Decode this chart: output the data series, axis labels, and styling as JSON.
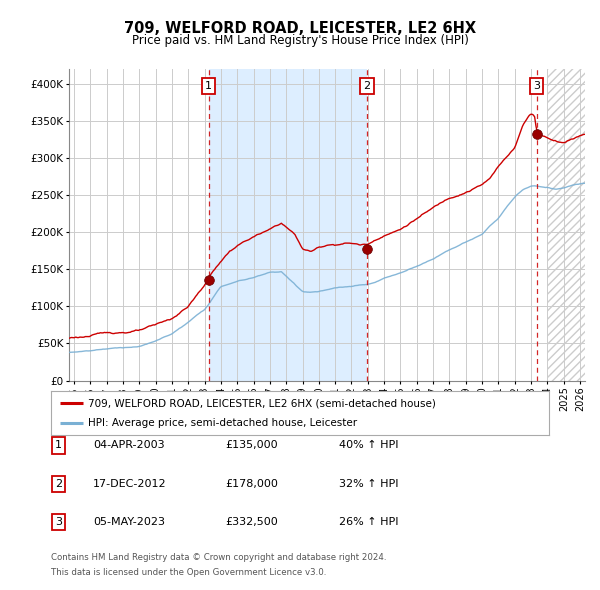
{
  "title": "709, WELFORD ROAD, LEICESTER, LE2 6HX",
  "subtitle": "Price paid vs. HM Land Registry's House Price Index (HPI)",
  "ylim": [
    0,
    420000
  ],
  "xlim_start": 1994.7,
  "xlim_end": 2026.3,
  "ytick_labels": [
    "£0",
    "£50K",
    "£100K",
    "£150K",
    "£200K",
    "£250K",
    "£300K",
    "£350K",
    "£400K"
  ],
  "ytick_values": [
    0,
    50000,
    100000,
    150000,
    200000,
    250000,
    300000,
    350000,
    400000
  ],
  "xtick_years": [
    1995,
    1996,
    1997,
    1998,
    1999,
    2000,
    2001,
    2002,
    2003,
    2004,
    2005,
    2006,
    2007,
    2008,
    2009,
    2010,
    2011,
    2012,
    2013,
    2014,
    2015,
    2016,
    2017,
    2018,
    2019,
    2020,
    2021,
    2022,
    2023,
    2024,
    2025,
    2026
  ],
  "sale_dates": [
    2003.25,
    2012.96,
    2023.35
  ],
  "sale_prices": [
    135000,
    178000,
    332500
  ],
  "sale_labels": [
    "1",
    "2",
    "3"
  ],
  "legend_red": "709, WELFORD ROAD, LEICESTER, LE2 6HX (semi-detached house)",
  "legend_blue": "HPI: Average price, semi-detached house, Leicester",
  "table_data": [
    [
      "1",
      "04-APR-2003",
      "£135,000",
      "40% ↑ HPI"
    ],
    [
      "2",
      "17-DEC-2012",
      "£178,000",
      "32% ↑ HPI"
    ],
    [
      "3",
      "05-MAY-2023",
      "£332,500",
      "26% ↑ HPI"
    ]
  ],
  "footnote1": "Contains HM Land Registry data © Crown copyright and database right 2024.",
  "footnote2": "This data is licensed under the Open Government Licence v3.0.",
  "chart_bg": "#ffffff",
  "panel_bg": "#ddeeff",
  "red_line": "#cc0000",
  "blue_line": "#7ab0d4",
  "grid_color": "#cccccc",
  "future_shade_start": 2024.0,
  "future_shade_end": 2026.3
}
